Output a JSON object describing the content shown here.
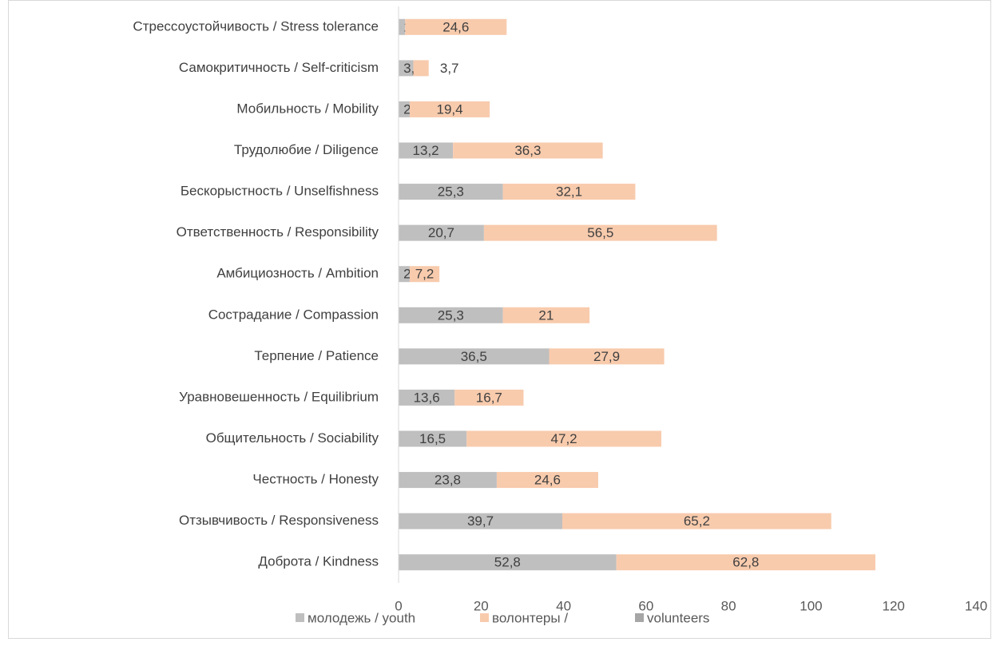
{
  "chart_data": {
    "type": "stacked-barh",
    "categories": [
      "Стрессоустойчивость / Stress tolerance",
      "Самокритичность / Self-criticism",
      "Мобильность / Mobility",
      "Трудолюбие / Diligence",
      "Бескорыстность / Unselfishness",
      "Ответственность / Responsibility",
      "Амбициозность / Ambition",
      "Сострадание / Compassion",
      "Терпение / Patience",
      "Уравновешенность / Equilibrium",
      "Общительность / Sociability",
      "Честность / Honesty",
      "Отзывчивость / Responsiveness",
      "Доброта / Kindness"
    ],
    "series": [
      {
        "name": "молодежь / youth",
        "color": "#bfbfbf",
        "values": [
          1.6,
          3.6,
          2.7,
          13.2,
          25.3,
          20.7,
          2.7,
          25.3,
          36.5,
          13.6,
          16.5,
          23.8,
          39.7,
          52.8
        ],
        "value_labels": [
          "1,6",
          "3,6",
          "2,7",
          "13,2",
          "25,3",
          "20,7",
          "2,7",
          "25,3",
          "36,5",
          "13,6",
          "16,5",
          "23,8",
          "39,7",
          "52,8"
        ]
      },
      {
        "name": "волонтеры /",
        "color": "#f8cbad",
        "values": [
          24.6,
          3.7,
          19.4,
          36.3,
          32.1,
          56.5,
          7.2,
          21,
          27.9,
          16.7,
          47.2,
          24.6,
          65.2,
          62.8
        ],
        "value_labels": [
          "24,6",
          "3,7",
          "19,4",
          "36,3",
          "32,1",
          "56,5",
          "7,2",
          "21",
          "27,9",
          "16,7",
          "47,2",
          "24,6",
          "65,2",
          "62,8"
        ]
      },
      {
        "name": "volunteers",
        "color": "#a6a6a6",
        "values": [
          null,
          null,
          null,
          null,
          null,
          null,
          null,
          null,
          null,
          null,
          null,
          null,
          null,
          null
        ]
      }
    ],
    "xlim": [
      0,
      140
    ],
    "xticks": [
      0,
      20,
      40,
      60,
      80,
      100,
      120,
      140
    ],
    "grid": false
  }
}
